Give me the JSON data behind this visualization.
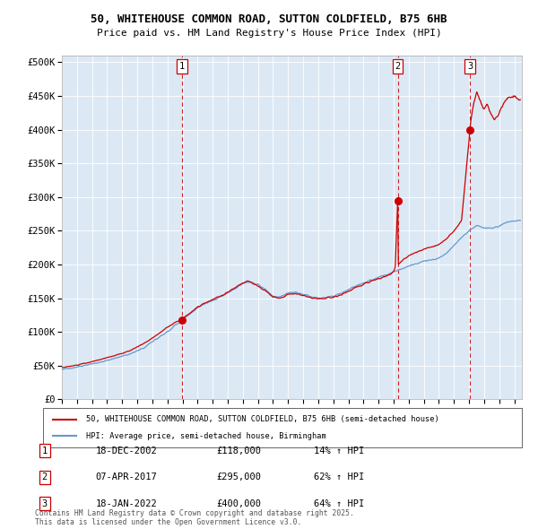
{
  "title_line1": "50, WHITEHOUSE COMMON ROAD, SUTTON COLDFIELD, B75 6HB",
  "title_line2": "Price paid vs. HM Land Registry's House Price Index (HPI)",
  "background_color": "#dce9f5",
  "plot_bg_color": "#dce9f5",
  "legend_label_red": "50, WHITEHOUSE COMMON ROAD, SUTTON COLDFIELD, B75 6HB (semi-detached house)",
  "legend_label_blue": "HPI: Average price, semi-detached house, Birmingham",
  "footer": "Contains HM Land Registry data © Crown copyright and database right 2025.\nThis data is licensed under the Open Government Licence v3.0.",
  "transactions": [
    {
      "num": 1,
      "date": "18-DEC-2002",
      "price": 118000,
      "pct": "14%",
      "dir": "↑"
    },
    {
      "num": 2,
      "date": "07-APR-2017",
      "price": 295000,
      "pct": "62%",
      "dir": "↑"
    },
    {
      "num": 3,
      "date": "18-JAN-2022",
      "price": 400000,
      "pct": "64%",
      "dir": "↑"
    }
  ],
  "vline_x": [
    2002.96,
    2017.27,
    2022.05
  ],
  "vline_labels": [
    "1",
    "2",
    "3"
  ],
  "sale_points_x": [
    2002.96,
    2017.27,
    2022.05
  ],
  "sale_points_y": [
    118000,
    295000,
    400000
  ],
  "ylim": [
    0,
    510000
  ],
  "xlim_start": 1995.0,
  "xlim_end": 2025.5,
  "yticks": [
    0,
    50000,
    100000,
    150000,
    200000,
    250000,
    300000,
    350000,
    400000,
    450000,
    500000
  ],
  "ytick_labels": [
    "£0",
    "£50K",
    "£100K",
    "£150K",
    "£200K",
    "£250K",
    "£300K",
    "£350K",
    "£400K",
    "£450K",
    "£500K"
  ],
  "xticks": [
    1995,
    1996,
    1997,
    1998,
    1999,
    2000,
    2001,
    2002,
    2003,
    2004,
    2005,
    2006,
    2007,
    2008,
    2009,
    2010,
    2011,
    2012,
    2013,
    2014,
    2015,
    2016,
    2017,
    2018,
    2019,
    2020,
    2021,
    2022,
    2023,
    2024,
    2025
  ],
  "red_color": "#cc0000",
  "blue_color": "#6699cc",
  "vline_color": "#cc0000",
  "grid_color": "#ffffff",
  "hpi_base_pts": [
    [
      1995.0,
      45000
    ],
    [
      1995.5,
      46000
    ],
    [
      1996.0,
      48500
    ],
    [
      1996.5,
      50000
    ],
    [
      1997.0,
      53000
    ],
    [
      1997.5,
      55500
    ],
    [
      1998.0,
      58000
    ],
    [
      1998.5,
      61000
    ],
    [
      1999.0,
      64000
    ],
    [
      1999.5,
      67000
    ],
    [
      2000.0,
      72000
    ],
    [
      2000.5,
      78000
    ],
    [
      2001.0,
      86000
    ],
    [
      2001.5,
      93000
    ],
    [
      2002.0,
      101000
    ],
    [
      2002.5,
      110000
    ],
    [
      2003.0,
      118000
    ],
    [
      2003.5,
      127000
    ],
    [
      2004.0,
      136000
    ],
    [
      2004.5,
      142000
    ],
    [
      2005.0,
      147000
    ],
    [
      2005.5,
      152000
    ],
    [
      2006.0,
      158000
    ],
    [
      2006.5,
      165000
    ],
    [
      2007.0,
      172000
    ],
    [
      2007.5,
      174000
    ],
    [
      2008.0,
      170000
    ],
    [
      2008.5,
      163000
    ],
    [
      2009.0,
      153000
    ],
    [
      2009.5,
      152000
    ],
    [
      2010.0,
      158000
    ],
    [
      2010.5,
      159000
    ],
    [
      2011.0,
      156000
    ],
    [
      2011.5,
      153000
    ],
    [
      2012.0,
      150000
    ],
    [
      2012.5,
      151000
    ],
    [
      2013.0,
      153000
    ],
    [
      2013.5,
      157000
    ],
    [
      2014.0,
      163000
    ],
    [
      2014.5,
      168000
    ],
    [
      2015.0,
      173000
    ],
    [
      2015.5,
      177000
    ],
    [
      2016.0,
      181000
    ],
    [
      2016.5,
      185000
    ],
    [
      2017.0,
      189000
    ],
    [
      2017.5,
      193000
    ],
    [
      2018.0,
      198000
    ],
    [
      2018.5,
      201000
    ],
    [
      2019.0,
      205000
    ],
    [
      2019.5,
      207000
    ],
    [
      2020.0,
      210000
    ],
    [
      2020.5,
      217000
    ],
    [
      2021.0,
      228000
    ],
    [
      2021.5,
      240000
    ],
    [
      2022.0,
      250000
    ],
    [
      2022.5,
      258000
    ],
    [
      2023.0,
      255000
    ],
    [
      2023.5,
      253000
    ],
    [
      2024.0,
      258000
    ],
    [
      2024.5,
      263000
    ],
    [
      2025.0,
      265000
    ],
    [
      2025.4,
      266000
    ]
  ],
  "red_base_pts_seg1": [
    [
      1995.0,
      47000
    ],
    [
      1995.5,
      49000
    ],
    [
      1996.0,
      51000
    ],
    [
      1996.5,
      53500
    ],
    [
      1997.0,
      56000
    ],
    [
      1997.5,
      59000
    ],
    [
      1998.0,
      62000
    ],
    [
      1998.5,
      65000
    ],
    [
      1999.0,
      68500
    ],
    [
      1999.5,
      72000
    ],
    [
      2000.0,
      78000
    ],
    [
      2000.5,
      84000
    ],
    [
      2001.0,
      91000
    ],
    [
      2001.5,
      99000
    ],
    [
      2002.0,
      107000
    ],
    [
      2002.5,
      114000
    ],
    [
      2002.96,
      118000
    ]
  ],
  "red_base_pts_seg2": [
    [
      2002.96,
      118000
    ],
    [
      2003.0,
      119500
    ],
    [
      2003.5,
      128000
    ],
    [
      2004.0,
      137000
    ],
    [
      2004.5,
      143000
    ],
    [
      2005.0,
      148000
    ],
    [
      2005.5,
      153000
    ],
    [
      2006.0,
      159000
    ],
    [
      2006.5,
      166000
    ],
    [
      2007.0,
      173000
    ],
    [
      2007.2,
      175000
    ],
    [
      2007.5,
      174000
    ],
    [
      2008.0,
      168000
    ],
    [
      2008.5,
      161000
    ],
    [
      2009.0,
      152000
    ],
    [
      2009.5,
      150000
    ],
    [
      2010.0,
      156000
    ],
    [
      2010.5,
      157000
    ],
    [
      2011.0,
      154000
    ],
    [
      2011.5,
      151000
    ],
    [
      2012.0,
      149000
    ],
    [
      2012.5,
      150000
    ],
    [
      2013.0,
      152000
    ],
    [
      2013.5,
      155000
    ],
    [
      2014.0,
      161000
    ],
    [
      2014.5,
      166000
    ],
    [
      2015.0,
      171000
    ],
    [
      2015.5,
      175000
    ],
    [
      2016.0,
      179000
    ],
    [
      2016.5,
      183000
    ],
    [
      2016.8,
      186000
    ],
    [
      2017.0,
      190000
    ],
    [
      2017.1,
      195000
    ],
    [
      2017.27,
      295000
    ]
  ],
  "red_base_pts_seg3": [
    [
      2017.27,
      295000
    ],
    [
      2017.3,
      200000
    ],
    [
      2017.5,
      205000
    ],
    [
      2018.0,
      213000
    ],
    [
      2018.5,
      218000
    ],
    [
      2019.0,
      223000
    ],
    [
      2019.5,
      226000
    ],
    [
      2020.0,
      230000
    ],
    [
      2020.5,
      238000
    ],
    [
      2021.0,
      250000
    ],
    [
      2021.5,
      265000
    ],
    [
      2022.0,
      385000
    ],
    [
      2022.05,
      400000
    ]
  ],
  "red_base_pts_seg4": [
    [
      2022.05,
      400000
    ],
    [
      2022.1,
      410000
    ],
    [
      2022.3,
      440000
    ],
    [
      2022.5,
      455000
    ],
    [
      2022.7,
      445000
    ],
    [
      2023.0,
      430000
    ],
    [
      2023.2,
      440000
    ],
    [
      2023.5,
      420000
    ],
    [
      2023.7,
      415000
    ],
    [
      2024.0,
      425000
    ],
    [
      2024.3,
      440000
    ],
    [
      2024.5,
      445000
    ],
    [
      2024.8,
      448000
    ],
    [
      2025.0,
      450000
    ],
    [
      2025.2,
      445000
    ],
    [
      2025.4,
      448000
    ]
  ]
}
